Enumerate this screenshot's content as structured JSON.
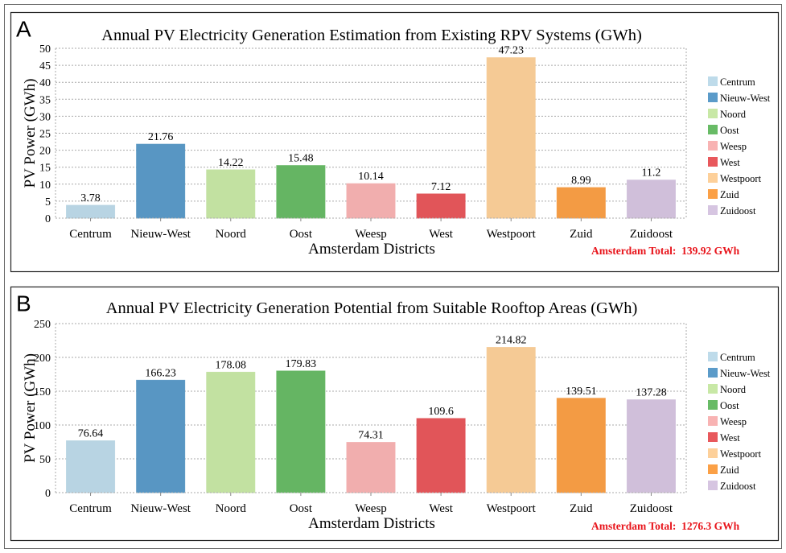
{
  "chart_data": [
    {
      "type": "bar",
      "panel_label": "A",
      "title": "Annual PV Electricity Generation Estimation from Existing RPV Systems (GWh)",
      "xlabel": "Amsterdam Districts",
      "ylabel": "PV Power (GWh)",
      "categories": [
        "Centrum",
        "Nieuw-West",
        "Noord",
        "Oost",
        "Weesp",
        "West",
        "Westpoort",
        "Zuid",
        "Zuidoost"
      ],
      "values": [
        3.78,
        21.76,
        14.22,
        15.48,
        10.14,
        7.12,
        47.23,
        8.99,
        11.2
      ],
      "value_labels": [
        "3.78",
        "21.76",
        "14.22",
        "15.48",
        "10.14",
        "7.12",
        "47.23",
        "8.99",
        "11.2"
      ],
      "ylim": [
        0,
        50
      ],
      "yticks": [
        0,
        5,
        10,
        15,
        20,
        25,
        30,
        35,
        40,
        45,
        50
      ],
      "grid": true,
      "legend": "right",
      "annotation": "Amsterdam Total:  139.92 GWh"
    },
    {
      "type": "bar",
      "panel_label": "B",
      "title": "Annual PV Electricity Generation Potential from Suitable Rooftop Areas (GWh)",
      "xlabel": "Amsterdam Districts",
      "ylabel": "PV Power (GWh)",
      "categories": [
        "Centrum",
        "Nieuw-West",
        "Noord",
        "Oost",
        "Weesp",
        "West",
        "Westpoort",
        "Zuid",
        "Zuidoost"
      ],
      "values": [
        76.64,
        166.23,
        178.08,
        179.83,
        74.31,
        109.6,
        214.82,
        139.51,
        137.28
      ],
      "value_labels": [
        "76.64",
        "166.23",
        "178.08",
        "179.83",
        "74.31",
        "109.6",
        "214.82",
        "139.51",
        "137.28"
      ],
      "ylim": [
        0,
        250
      ],
      "yticks": [
        0,
        50,
        100,
        150,
        200,
        250
      ],
      "grid": true,
      "legend": "right",
      "annotation": "Amsterdam Total:  1276.3 GWh"
    }
  ],
  "colors": {
    "Centrum": "#bedbea",
    "Nieuw-West": "#5b9bc9",
    "Noord": "#c8e8a6",
    "Oost": "#68bb66",
    "Weesp": "#f8b3b3",
    "West": "#e8585c",
    "Westpoort": "#fdd09a",
    "Zuid": "#fba046",
    "Zuidoost": "#d6c5e1",
    "annotation": "#e8141b"
  }
}
